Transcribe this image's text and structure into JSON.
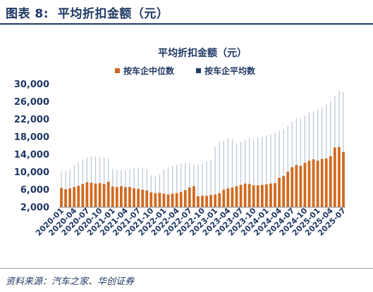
{
  "figure": {
    "label": "图表 8:",
    "title": "平均折扣金额（元）",
    "source": "资料来源：汽车之家、华创证券"
  },
  "colors": {
    "median": "#d2691e",
    "mean": "#b9c4d3",
    "text": "#1f3864"
  },
  "chart_data": {
    "type": "bar",
    "title": "平均折扣金额（元）",
    "xlabel": "",
    "ylabel": "",
    "ylim": [
      2000,
      30000
    ],
    "yticks": [
      "2,000",
      "6,000",
      "10,000",
      "14,000",
      "18,000",
      "22,000",
      "26,000",
      "30,000"
    ],
    "xtick_labels": [
      "2020-01",
      "2020-04",
      "2020-07",
      "2020-10",
      "2021-01",
      "2021-04",
      "2021-07",
      "2021-10",
      "2022-01",
      "2022-04",
      "2022-07",
      "2022-10",
      "2023-01",
      "2023-04",
      "2023-07",
      "2023-10",
      "2024-01",
      "2024-04",
      "2024-07",
      "2024-10",
      "2025-01",
      "2025-04",
      "2025-07"
    ],
    "grid": false,
    "legend_position": "top",
    "categories": [
      "2020-01",
      "2020-02",
      "2020-03",
      "2020-04",
      "2020-05",
      "2020-06",
      "2020-07",
      "2020-08",
      "2020-09",
      "2020-10",
      "2020-11",
      "2020-12",
      "2021-01",
      "2021-02",
      "2021-03",
      "2021-04",
      "2021-05",
      "2021-06",
      "2021-07",
      "2021-08",
      "2021-09",
      "2021-10",
      "2021-11",
      "2021-12",
      "2022-01",
      "2022-02",
      "2022-03",
      "2022-04",
      "2022-05",
      "2022-06",
      "2022-07",
      "2022-08",
      "2022-09",
      "2022-10",
      "2022-11",
      "2022-12",
      "2023-01",
      "2023-02",
      "2023-03",
      "2023-04",
      "2023-05",
      "2023-06",
      "2023-07",
      "2023-08",
      "2023-09",
      "2023-10",
      "2023-11",
      "2023-12",
      "2024-01",
      "2024-02",
      "2024-03",
      "2024-04",
      "2024-05",
      "2024-06",
      "2024-07",
      "2024-08",
      "2024-09",
      "2024-10",
      "2024-11",
      "2024-12",
      "2025-01",
      "2025-02",
      "2025-03",
      "2025-04",
      "2025-05",
      "2025-06",
      "2025-07"
    ],
    "series": [
      {
        "name": "按车企中位数",
        "values": [
          6300,
          6000,
          6200,
          6500,
          6800,
          7200,
          7600,
          7500,
          7300,
          7400,
          7200,
          7700,
          6600,
          6500,
          6700,
          6500,
          6500,
          6200,
          6100,
          5900,
          5700,
          5300,
          5100,
          5200,
          5000,
          4800,
          5000,
          5100,
          5400,
          5800,
          6400,
          6700,
          4400,
          4500,
          4500,
          4700,
          4800,
          5100,
          5900,
          6200,
          6400,
          6700,
          7000,
          7300,
          7200,
          6900,
          6900,
          7000,
          7100,
          7300,
          7400,
          8600,
          9000,
          10000,
          11000,
          11500,
          11300,
          12000,
          12500,
          12800,
          12500,
          12900,
          13000,
          13500,
          15500,
          15600,
          14500
        ]
      },
      {
        "name": "按车企平均数",
        "values": [
          10000,
          10200,
          10500,
          11500,
          12200,
          12800,
          13200,
          13500,
          13400,
          13300,
          13200,
          12900,
          10600,
          10400,
          10300,
          10200,
          10500,
          10900,
          11000,
          10800,
          10600,
          9200,
          8900,
          9300,
          10500,
          11000,
          11300,
          11600,
          11800,
          12000,
          11900,
          11700,
          11600,
          11900,
          12300,
          12700,
          15600,
          16700,
          17000,
          17600,
          17300,
          16400,
          16800,
          17200,
          17600,
          17400,
          17700,
          18000,
          18300,
          18500,
          18900,
          19300,
          19700,
          20500,
          21400,
          22200,
          22000,
          22800,
          23400,
          23700,
          24100,
          24700,
          25300,
          25900,
          27300,
          28400,
          28100
        ]
      }
    ]
  }
}
